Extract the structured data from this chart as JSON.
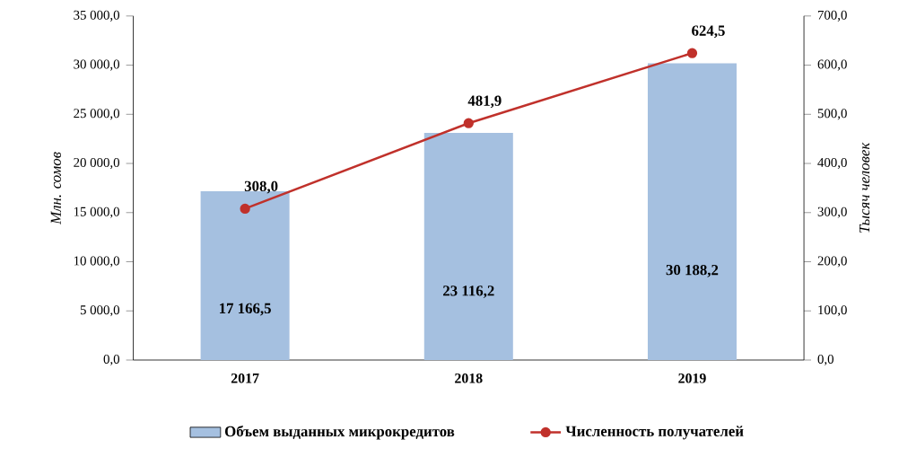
{
  "chart_data": {
    "type": "bar",
    "categories": [
      "2017",
      "2018",
      "2019"
    ],
    "series": [
      {
        "name": "Объем выданных микрокредитов",
        "color": "#a5c0e0",
        "values": [
          17166.5,
          23116.2,
          30188.2
        ],
        "value_labels": [
          "17 166,5",
          "23 116,2",
          "30 188,2"
        ]
      },
      {
        "name": "Численность получателей",
        "type": "line",
        "axis": "y2",
        "color": "#c0312b",
        "values": [
          308.0,
          481.9,
          624.5
        ],
        "value_labels": [
          "308,0",
          "481,9",
          "624,5"
        ]
      }
    ],
    "marker": "circle",
    "ylabel": "Млн. сомов",
    "y2label": "Тысяч человек",
    "legend": "bottom",
    "ylim": [
      0,
      35000
    ],
    "yticks": [
      {
        "value": 0,
        "label": "0,0"
      },
      {
        "value": 5000,
        "label": "5 000,0"
      },
      {
        "value": 10000,
        "label": "10 000,0"
      },
      {
        "value": 15000,
        "label": "15 000,0"
      },
      {
        "value": 20000,
        "label": "20 000,0"
      },
      {
        "value": 25000,
        "label": "25 000,0"
      },
      {
        "value": 30000,
        "label": "30 000,0"
      },
      {
        "value": 35000,
        "label": "35 000,0"
      }
    ],
    "y2lim": [
      0,
      700
    ],
    "y2ticks": [
      {
        "value": 0,
        "label": "0,0"
      },
      {
        "value": 100,
        "label": "100,0"
      },
      {
        "value": 200,
        "label": "200,0"
      },
      {
        "value": 300,
        "label": "300,0"
      },
      {
        "value": 400,
        "label": "400,0"
      },
      {
        "value": 500,
        "label": "500,0"
      },
      {
        "value": 600,
        "label": "600,0"
      },
      {
        "value": 700,
        "label": "700,0"
      }
    ]
  }
}
